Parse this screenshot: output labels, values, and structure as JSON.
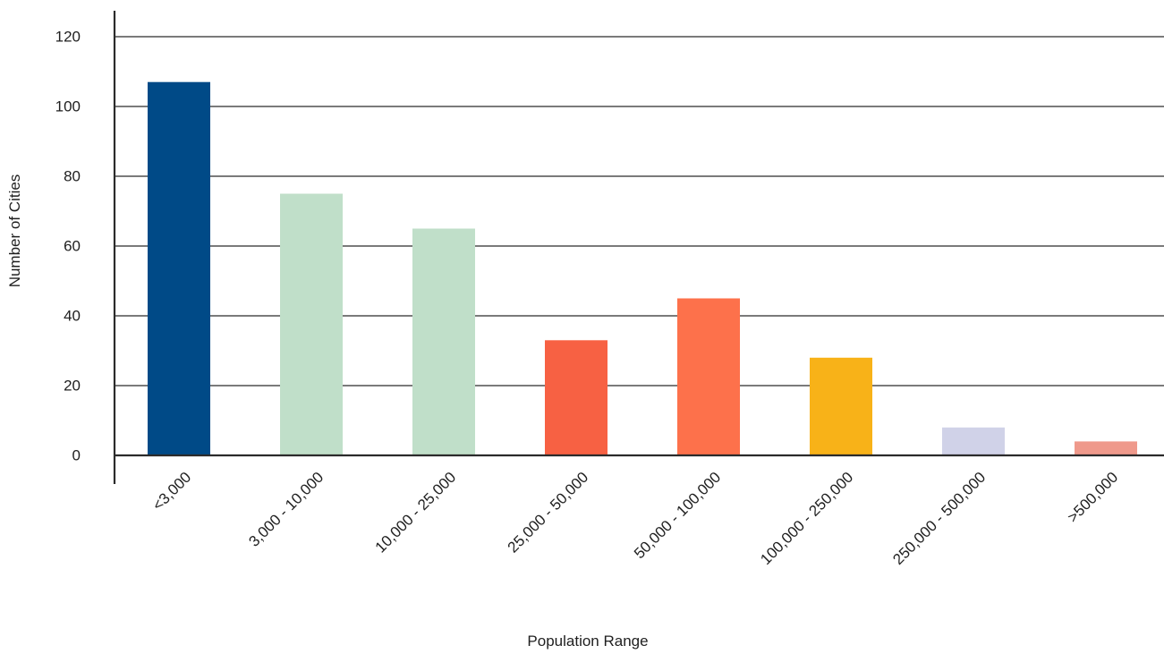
{
  "chart_data": {
    "type": "bar",
    "categories": [
      "<3,000",
      "3,000 - 10,000",
      "10,000 - 25,000",
      "25,000 - 50,000",
      "50,000 - 100,000",
      "100,000 - 250,000",
      "250,000 - 500,000",
      ">500,000"
    ],
    "values": [
      107,
      75,
      65,
      33,
      45,
      28,
      8,
      4
    ],
    "colors": [
      "#004a87",
      "#c0dfc9",
      "#c0dfc9",
      "#f76143",
      "#fd714b",
      "#f8b218",
      "#d0d2e8",
      "#ef998b"
    ],
    "xlabel": "Population Range",
    "ylabel": "Number of Cities",
    "ylim": [
      0,
      120
    ],
    "yticks": [
      0,
      20,
      40,
      60,
      80,
      100,
      120
    ],
    "grid": true
  }
}
